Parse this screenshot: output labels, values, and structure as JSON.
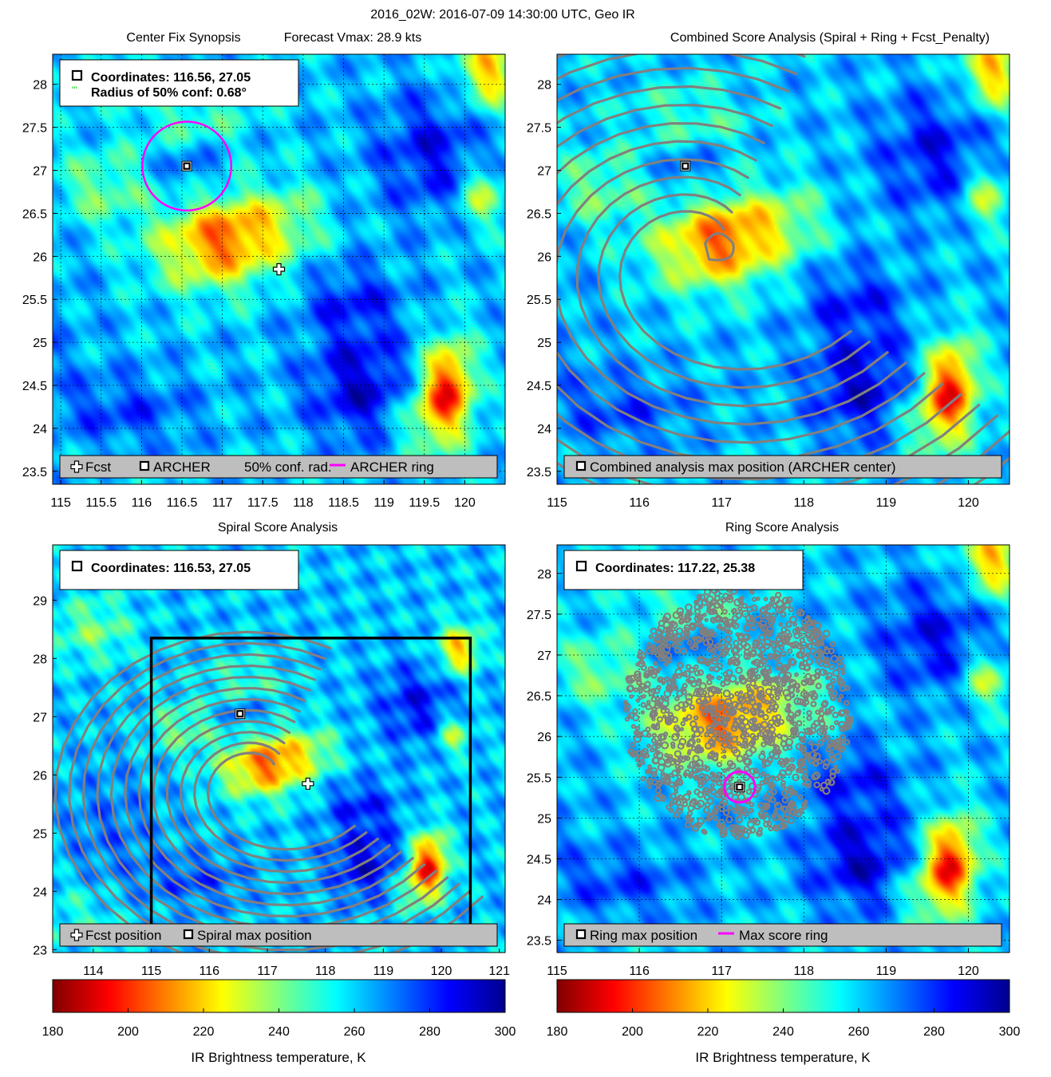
{
  "figure": {
    "suptitle": "2016_02W: 2016-07-09 14:30:00 UTC, Geo IR",
    "colors": {
      "fcst_marker": "#ffffff",
      "archer_marker": "#000000",
      "conf_radius": "#00cc00",
      "ring": "#ff00ff",
      "contour": "#808080",
      "legend_bg": "#bebebe",
      "box": "#000000"
    }
  },
  "chart_data": [
    {
      "id": "center_fix",
      "type": "heatmap",
      "title": "Center Fix Synopsis",
      "title2": "Forecast Vmax: 28.9 kts",
      "xlim": [
        114.9,
        120.5
      ],
      "ylim": [
        23.35,
        28.35
      ],
      "xticks": [
        115,
        115.5,
        116,
        116.5,
        117,
        117.5,
        118,
        118.5,
        119,
        119.5,
        120
      ],
      "xtick_labels": [
        "115",
        "115.5",
        "116",
        "116.5",
        "117",
        "117.5",
        "118",
        "118.5",
        "119",
        "119.5",
        "120"
      ],
      "yticks": [
        23.5,
        24,
        24.5,
        25,
        25.5,
        26,
        26.5,
        27,
        27.5,
        28
      ],
      "ytick_labels": [
        "23.5",
        "24",
        "24.5",
        "25",
        "25.5",
        "26",
        "26.5",
        "27",
        "27.5",
        "28"
      ],
      "grid": true,
      "info": [
        "Coordinates: 116.56, 27.05",
        "Radius of 50% conf: 0.68°"
      ],
      "archer_center": [
        116.56,
        27.05
      ],
      "fcst_position": [
        117.7,
        25.85
      ],
      "ring_radius_deg": 0.55,
      "legend": [
        "Fcst",
        "ARCHER",
        "50% conf. rad.",
        "ARCHER ring"
      ]
    },
    {
      "id": "combined",
      "type": "heatmap",
      "title": "Combined Score Analysis (Spiral + Ring + Fcst_Penalty)",
      "xlim": [
        115,
        120.5
      ],
      "ylim": [
        23.35,
        28.35
      ],
      "xticks": [
        115,
        116,
        117,
        118,
        119,
        120
      ],
      "xtick_labels": [
        "115",
        "116",
        "117",
        "118",
        "119",
        "120"
      ],
      "yticks": [
        23.5,
        24,
        24.5,
        25,
        25.5,
        26,
        26.5,
        27,
        27.5,
        28
      ],
      "ytick_labels": [
        "23.5",
        "24",
        "24.5",
        "25",
        "25.5",
        "26",
        "26.5",
        "27",
        "27.5",
        "28"
      ],
      "grid": false,
      "archer_center": [
        116.56,
        27.05
      ],
      "legend": [
        "Combined analysis max position (ARCHER center)"
      ]
    },
    {
      "id": "spiral",
      "type": "heatmap",
      "title": "Spiral Score Analysis",
      "xlim": [
        113.3,
        121.1
      ],
      "ylim": [
        22.95,
        29.95
      ],
      "xticks": [
        114,
        115,
        116,
        117,
        118,
        119,
        120,
        121
      ],
      "xtick_labels": [
        "114",
        "115",
        "116",
        "117",
        "118",
        "119",
        "120",
        "121"
      ],
      "yticks": [
        23,
        24,
        25,
        26,
        27,
        28,
        29
      ],
      "ytick_labels": [
        "23",
        "24",
        "25",
        "26",
        "27",
        "28",
        "29"
      ],
      "grid": false,
      "info": [
        "Coordinates: 116.53, 27.05"
      ],
      "spiral_max": [
        116.53,
        27.05
      ],
      "fcst_position": [
        117.7,
        25.85
      ],
      "search_box": {
        "lon": [
          115,
          120.5
        ],
        "lat": [
          23.35,
          28.35
        ]
      },
      "legend": [
        "Fcst position",
        "Spiral max position"
      ]
    },
    {
      "id": "ring",
      "type": "heatmap",
      "title": "Ring Score Analysis",
      "xlim": [
        115,
        120.5
      ],
      "ylim": [
        23.35,
        28.35
      ],
      "xticks": [
        115,
        116,
        117,
        118,
        119,
        120
      ],
      "xtick_labels": [
        "115",
        "116",
        "117",
        "118",
        "119",
        "120"
      ],
      "yticks": [
        23.5,
        24,
        24.5,
        25,
        25.5,
        26,
        26.5,
        27,
        27.5,
        28
      ],
      "ytick_labels": [
        "23.5",
        "24",
        "24.5",
        "25",
        "25.5",
        "26",
        "26.5",
        "27",
        "27.5",
        "28"
      ],
      "grid": true,
      "info": [
        "Coordinates: 117.22, 25.38"
      ],
      "ring_max": [
        117.22,
        25.38
      ],
      "ring_radius_deg": 0.22,
      "legend": [
        "Ring max position",
        "Max score ring"
      ]
    }
  ],
  "colorbars": [
    {
      "label": "IR Brightness temperature, K",
      "range": [
        180,
        300
      ],
      "ticks": [
        180,
        200,
        220,
        240,
        260,
        280,
        300
      ]
    },
    {
      "label": "IR Brightness temperature, K",
      "range": [
        180,
        300
      ],
      "ticks": [
        180,
        200,
        220,
        240,
        260,
        280,
        300
      ]
    }
  ],
  "ir_field": {
    "background_K": 262,
    "features": [
      {
        "lon": 116.9,
        "lat": 26.1,
        "amp": -45,
        "sx": 0.55,
        "sy": 0.35
      },
      {
        "lon": 117.3,
        "lat": 26.4,
        "amp": -20,
        "sx": 0.45,
        "sy": 0.3
      },
      {
        "lon": 117.9,
        "lat": 26.45,
        "amp": -12,
        "sx": 0.3,
        "sy": 0.3
      },
      {
        "lon": 119.8,
        "lat": 24.55,
        "amp": -55,
        "sx": 0.22,
        "sy": 0.35
      },
      {
        "lon": 119.6,
        "lat": 24.1,
        "amp": -30,
        "sx": 0.3,
        "sy": 0.3
      },
      {
        "lon": 120.3,
        "lat": 28.15,
        "amp": -45,
        "sx": 0.25,
        "sy": 0.3
      },
      {
        "lon": 120.2,
        "lat": 26.7,
        "amp": -30,
        "sx": 0.2,
        "sy": 0.25
      },
      {
        "lon": 115.5,
        "lat": 26.8,
        "amp": -20,
        "sx": 0.4,
        "sy": 0.3
      },
      {
        "lon": 116.6,
        "lat": 27.6,
        "amp": -15,
        "sx": 0.5,
        "sy": 0.3
      },
      {
        "lon": 118.7,
        "lat": 24.5,
        "amp": 28,
        "sx": 0.45,
        "sy": 0.45
      },
      {
        "lon": 119.6,
        "lat": 27.2,
        "amp": 22,
        "sx": 0.5,
        "sy": 0.5
      },
      {
        "lon": 118.6,
        "lat": 25.5,
        "amp": 18,
        "sx": 0.45,
        "sy": 0.3
      },
      {
        "lon": 116.6,
        "lat": 27.05,
        "amp": 14,
        "sx": 0.28,
        "sy": 0.22
      },
      {
        "lon": 115.8,
        "lat": 24.2,
        "amp": 15,
        "sx": 0.6,
        "sy": 0.3
      },
      {
        "lon": 114.3,
        "lat": 25.0,
        "amp": 10,
        "sx": 0.6,
        "sy": 0.8
      },
      {
        "lon": 114.0,
        "lat": 28.5,
        "amp": -20,
        "sx": 0.5,
        "sy": 0.4
      },
      {
        "lon": 113.8,
        "lat": 23.6,
        "amp": -12,
        "sx": 0.5,
        "sy": 0.4
      }
    ]
  }
}
